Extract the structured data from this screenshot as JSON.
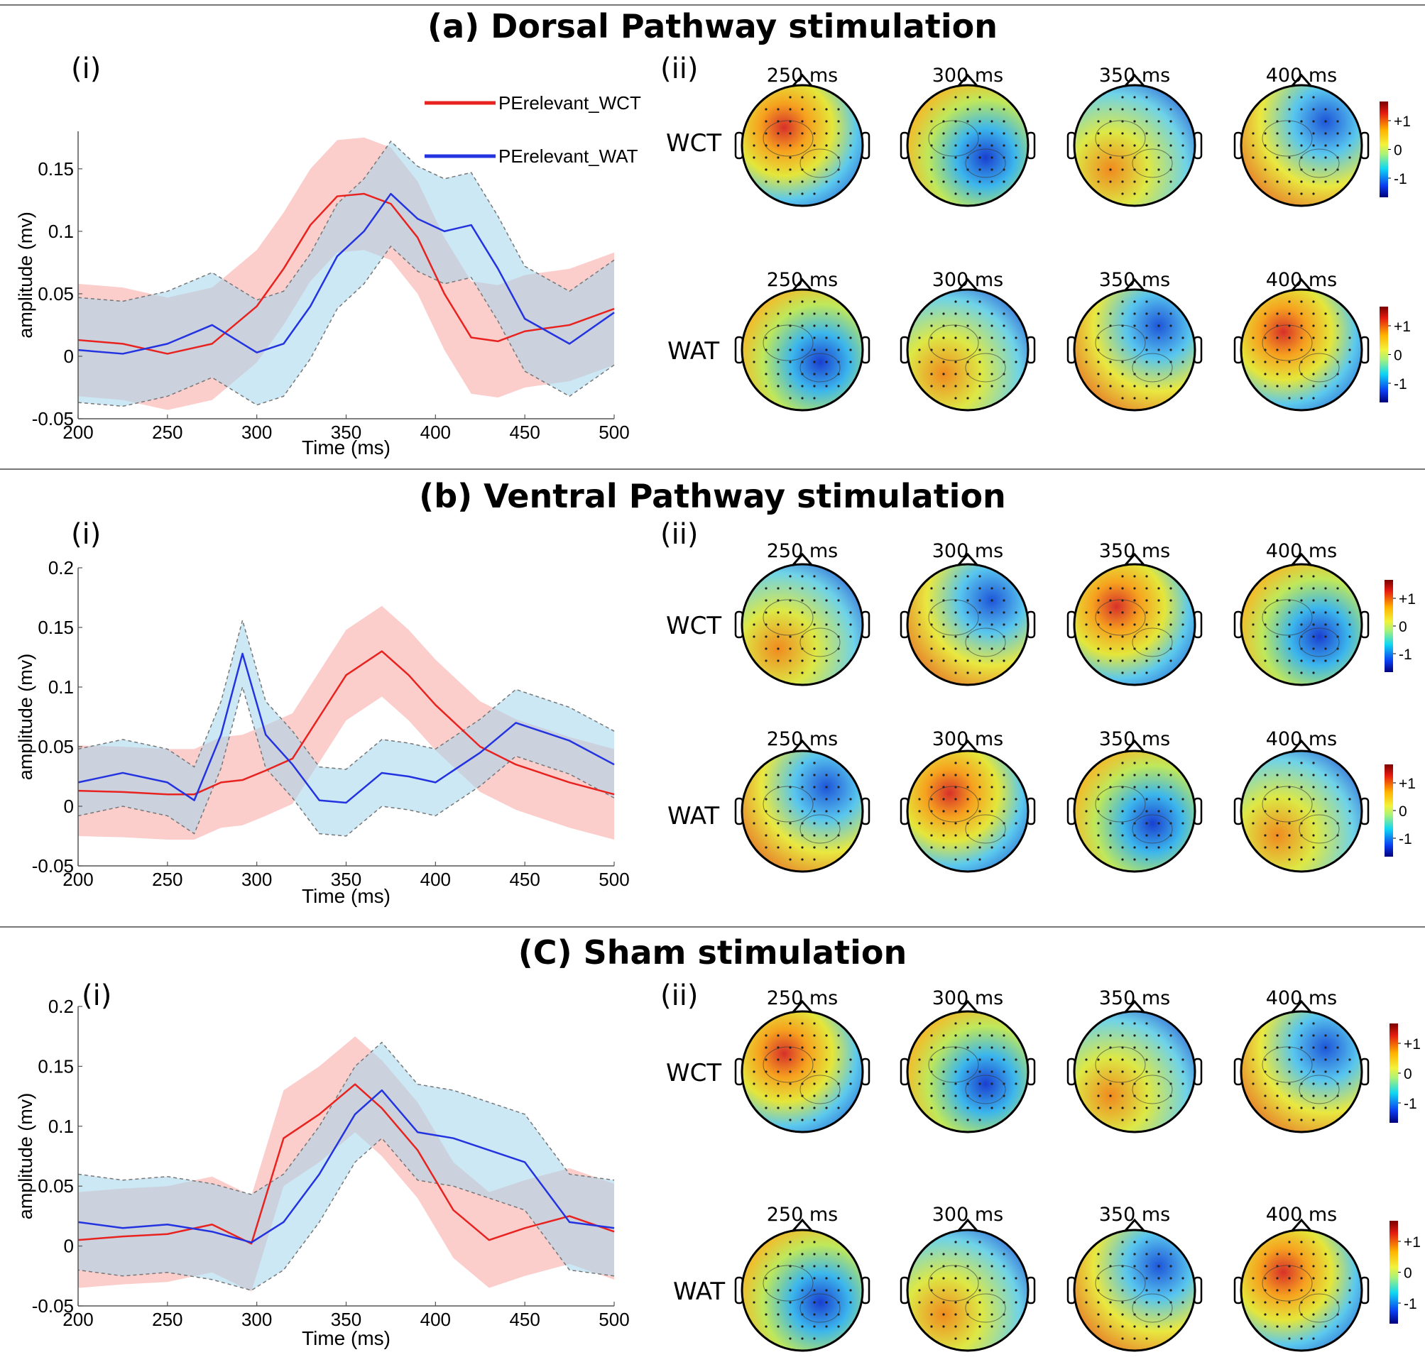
{
  "figure": {
    "sections": [
      {
        "title": "(a) Dorsal Pathway stimulation",
        "panel_i": "(i)",
        "panel_ii": "(ii)"
      },
      {
        "title": "(b) Ventral Pathway stimulation",
        "panel_i": "(i)",
        "panel_ii": "(ii)"
      },
      {
        "title": "(C)  Sham stimulation",
        "panel_i": "(i)",
        "panel_ii": "(ii)"
      }
    ],
    "row_labels": [
      "WCT",
      "WAT"
    ],
    "topo_times": [
      "250 ms",
      "300 ms",
      "350 ms",
      "400 ms"
    ],
    "colorbar_ticks": [
      "+1",
      "0",
      "-1"
    ],
    "colors": {
      "wct": "#e8231f",
      "wat": "#2333e0",
      "wct_band": "#f7a5a3",
      "wat_band": "#a4d6ec"
    }
  },
  "chart_data": [
    {
      "type": "line",
      "title": "(a) Dorsal Pathway stimulation",
      "xlabel": "Time (ms)",
      "ylabel": "amplitude (mv)",
      "xlim": [
        200,
        500
      ],
      "ylim": [
        -0.05,
        0.18
      ],
      "xticks": [
        "200",
        "250",
        "300",
        "350",
        "400",
        "450",
        "500"
      ],
      "yticks": [
        "-0.05",
        "0",
        "0.05",
        "0.1",
        "0.15"
      ],
      "legend": [
        "PErelevant_WCT",
        "PErelevant_WAT"
      ],
      "x": [
        200,
        225,
        250,
        275,
        300,
        315,
        330,
        345,
        360,
        375,
        390,
        405,
        420,
        435,
        450,
        475,
        500
      ],
      "series": [
        {
          "name": "PErelevant_WCT",
          "values": [
            0.013,
            0.01,
            0.002,
            0.01,
            0.04,
            0.07,
            0.105,
            0.128,
            0.13,
            0.122,
            0.095,
            0.05,
            0.015,
            0.012,
            0.02,
            0.025,
            0.038
          ],
          "band": 0.045
        },
        {
          "name": "PErelevant_WAT",
          "values": [
            0.005,
            0.002,
            0.01,
            0.025,
            0.003,
            0.01,
            0.04,
            0.08,
            0.1,
            0.13,
            0.11,
            0.1,
            0.105,
            0.07,
            0.03,
            0.01,
            0.035
          ],
          "band": 0.042
        }
      ]
    },
    {
      "type": "line",
      "title": "(b) Ventral Pathway stimulation",
      "xlabel": "Time (ms)",
      "ylabel": "amplitude (mv)",
      "xlim": [
        200,
        500
      ],
      "ylim": [
        -0.05,
        0.2
      ],
      "xticks": [
        "200",
        "250",
        "300",
        "350",
        "400",
        "450",
        "500"
      ],
      "yticks": [
        "-0.05",
        "0",
        "0.05",
        "0.1",
        "0.15",
        "0.2"
      ],
      "x": [
        200,
        225,
        250,
        265,
        280,
        292,
        305,
        320,
        335,
        350,
        370,
        385,
        400,
        425,
        445,
        475,
        500
      ],
      "series": [
        {
          "name": "PErelevant_WCT",
          "values": [
            0.013,
            0.012,
            0.01,
            0.01,
            0.02,
            0.022,
            0.03,
            0.04,
            0.075,
            0.11,
            0.13,
            0.11,
            0.085,
            0.05,
            0.035,
            0.02,
            0.01
          ],
          "band": 0.038
        },
        {
          "name": "PErelevant_WAT",
          "values": [
            0.02,
            0.028,
            0.02,
            0.005,
            0.06,
            0.128,
            0.06,
            0.035,
            0.005,
            0.003,
            0.028,
            0.025,
            0.02,
            0.045,
            0.07,
            0.055,
            0.035
          ],
          "band": 0.028
        }
      ]
    },
    {
      "type": "line",
      "title": "(C)  Sham stimulation",
      "xlabel": "Time (ms)",
      "ylabel": "amplitude (mv)",
      "xlim": [
        200,
        500
      ],
      "ylim": [
        -0.05,
        0.2
      ],
      "xticks": [
        "200",
        "250",
        "300",
        "350",
        "400",
        "450",
        "500"
      ],
      "yticks": [
        "-0.05",
        "0",
        "0.05",
        "0.1",
        "0.15",
        "0.2"
      ],
      "x": [
        200,
        225,
        250,
        275,
        297,
        315,
        335,
        355,
        370,
        390,
        410,
        430,
        450,
        475,
        500
      ],
      "series": [
        {
          "name": "PErelevant_WCT",
          "values": [
            0.005,
            0.008,
            0.01,
            0.018,
            0.002,
            0.09,
            0.11,
            0.135,
            0.115,
            0.08,
            0.03,
            0.005,
            0.015,
            0.025,
            0.012
          ],
          "band": 0.04
        },
        {
          "name": "PErelevant_WAT",
          "values": [
            0.02,
            0.015,
            0.018,
            0.012,
            0.003,
            0.02,
            0.06,
            0.11,
            0.13,
            0.095,
            0.09,
            0.08,
            0.07,
            0.02,
            0.015
          ],
          "band": 0.04
        }
      ]
    }
  ]
}
